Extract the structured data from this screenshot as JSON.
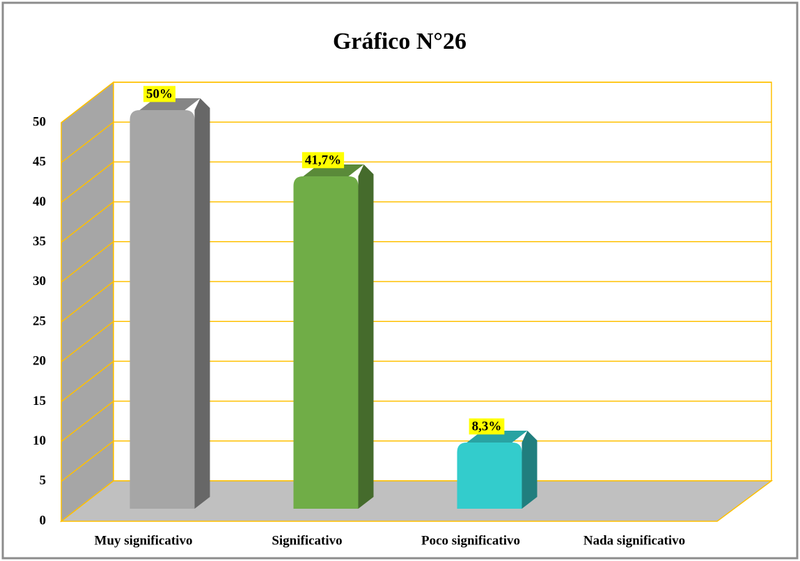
{
  "chart_data": {
    "type": "bar3d",
    "title": "Gráfico N°26",
    "categories": [
      "Muy significativo",
      "Significativo",
      "Poco significativo",
      "Nada significativo"
    ],
    "values": [
      50,
      41.7,
      8.3,
      0
    ],
    "value_labels": [
      "50%",
      "41,7%",
      "8,3%",
      null
    ],
    "colors": [
      "#a6a6a6",
      "#70ad47",
      "#33cccc",
      null
    ],
    "ylim": [
      0,
      50
    ],
    "yticks": [
      0,
      5,
      10,
      15,
      20,
      25,
      30,
      35,
      40,
      45,
      50
    ],
    "grid": true
  }
}
